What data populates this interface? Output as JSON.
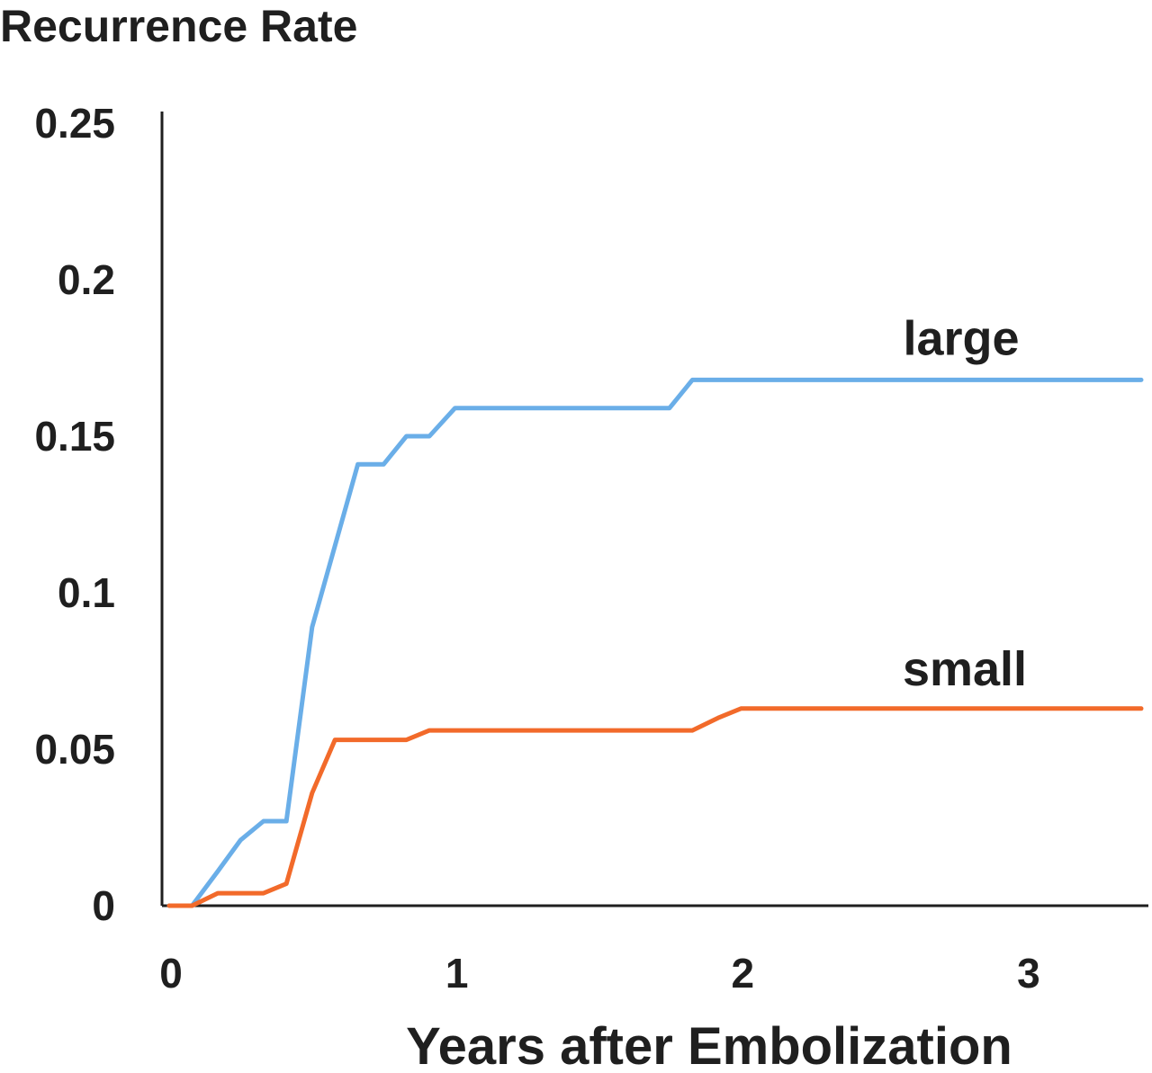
{
  "chart_data": {
    "type": "line",
    "title": "Recurrence Rate",
    "xlabel": "Years after Embolization",
    "ylabel": "",
    "xlim": [
      0,
      3.4
    ],
    "ylim": [
      0,
      0.25
    ],
    "x_ticks": [
      {
        "value": 0,
        "label": "0"
      },
      {
        "value": 1,
        "label": "1"
      },
      {
        "value": 2,
        "label": "2"
      },
      {
        "value": 3,
        "label": "3"
      }
    ],
    "y_ticks": [
      {
        "value": 0,
        "label": "0"
      },
      {
        "value": 0.05,
        "label": "0.05"
      },
      {
        "value": 0.1,
        "label": "0.1"
      },
      {
        "value": 0.15,
        "label": "0.15"
      },
      {
        "value": 0.2,
        "label": "0.2"
      },
      {
        "value": 0.25,
        "label": "0.25"
      }
    ],
    "grid": false,
    "legend": "none",
    "series": [
      {
        "name": "large",
        "color": "#6aaee8",
        "points": [
          [
            0.0,
            0.0
          ],
          [
            0.08,
            0.0
          ],
          [
            0.17,
            0.011
          ],
          [
            0.25,
            0.021
          ],
          [
            0.33,
            0.027
          ],
          [
            0.41,
            0.027
          ],
          [
            0.5,
            0.089
          ],
          [
            0.58,
            0.115
          ],
          [
            0.66,
            0.141
          ],
          [
            0.75,
            0.141
          ],
          [
            0.83,
            0.15
          ],
          [
            0.91,
            0.15
          ],
          [
            1.0,
            0.159
          ],
          [
            1.75,
            0.159
          ],
          [
            1.83,
            0.168
          ],
          [
            3.4,
            0.168
          ]
        ]
      },
      {
        "name": "small",
        "color": "#f26a2a",
        "points": [
          [
            0.0,
            0.0
          ],
          [
            0.08,
            0.0
          ],
          [
            0.17,
            0.004
          ],
          [
            0.33,
            0.004
          ],
          [
            0.41,
            0.007
          ],
          [
            0.5,
            0.036
          ],
          [
            0.58,
            0.053
          ],
          [
            0.83,
            0.053
          ],
          [
            0.91,
            0.056
          ],
          [
            1.83,
            0.056
          ],
          [
            1.92,
            0.06
          ],
          [
            2.0,
            0.063
          ],
          [
            3.4,
            0.063
          ]
        ]
      }
    ]
  }
}
